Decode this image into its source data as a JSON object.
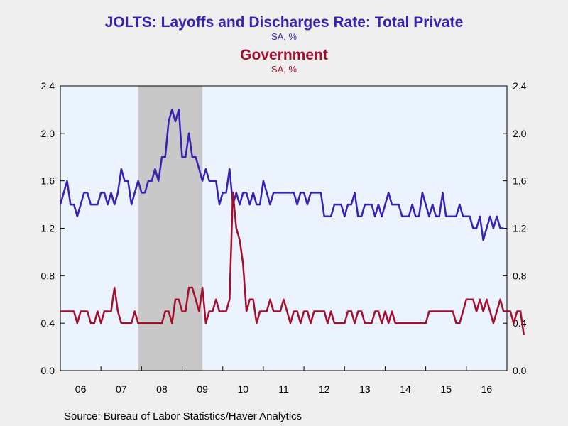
{
  "titles": {
    "series1_title": "JOLTS: Layoffs and Discharges Rate: Total Private",
    "series1_units": "SA, %",
    "series2_title": "Government",
    "series2_units": "SA, %"
  },
  "source": "Source:  Bureau of Labor Statistics/Haver Analytics",
  "colors": {
    "series1": "#3a1fb5",
    "series2": "#a50d2c",
    "plot_bg": "#ebf3ff",
    "recession": "#c8c8c8"
  },
  "chart_data": {
    "type": "line",
    "x_labels": [
      "06",
      "07",
      "08",
      "09",
      "10",
      "11",
      "12",
      "13",
      "14",
      "15",
      "16"
    ],
    "x_start": "2006-01",
    "x_end": "2016-12",
    "ylim": [
      0.0,
      2.4
    ],
    "y_ticks": [
      "0.0",
      "0.4",
      "0.8",
      "1.2",
      "1.6",
      "2.0",
      "2.4"
    ],
    "right_axis_ticks": [
      "0.0",
      "0.4",
      "0.8",
      "1.2",
      "1.6",
      "2.0",
      "2.4"
    ],
    "recession_shading": {
      "start": "2007-12",
      "end": "2009-06"
    },
    "grid": false,
    "legend": "none",
    "series": [
      {
        "name": "JOLTS: Layoffs and Discharges Rate: Total Private",
        "values": [
          1.4,
          1.5,
          1.6,
          1.4,
          1.4,
          1.3,
          1.4,
          1.5,
          1.5,
          1.4,
          1.4,
          1.4,
          1.5,
          1.5,
          1.4,
          1.5,
          1.4,
          1.5,
          1.7,
          1.6,
          1.6,
          1.4,
          1.5,
          1.6,
          1.5,
          1.5,
          1.6,
          1.6,
          1.7,
          1.6,
          1.8,
          1.8,
          2.1,
          2.2,
          2.1,
          2.2,
          1.8,
          1.8,
          2.0,
          1.8,
          1.8,
          1.7,
          1.6,
          1.7,
          1.6,
          1.6,
          1.6,
          1.4,
          1.5,
          1.5,
          1.7,
          1.4,
          1.5,
          1.4,
          1.5,
          1.5,
          1.4,
          1.5,
          1.4,
          1.4,
          1.6,
          1.5,
          1.4,
          1.5,
          1.5,
          1.5,
          1.5,
          1.5,
          1.5,
          1.5,
          1.4,
          1.5,
          1.5,
          1.4,
          1.5,
          1.5,
          1.5,
          1.5,
          1.3,
          1.3,
          1.3,
          1.4,
          1.4,
          1.4,
          1.3,
          1.4,
          1.4,
          1.5,
          1.3,
          1.3,
          1.4,
          1.4,
          1.4,
          1.3,
          1.4,
          1.3,
          1.4,
          1.5,
          1.4,
          1.4,
          1.4,
          1.3,
          1.3,
          1.3,
          1.4,
          1.3,
          1.3,
          1.5,
          1.4,
          1.3,
          1.4,
          1.3,
          1.3,
          1.5,
          1.3,
          1.3,
          1.3,
          1.3,
          1.4,
          1.3,
          1.3,
          1.3,
          1.2,
          1.2,
          1.3,
          1.1,
          1.2,
          1.3,
          1.2,
          1.3,
          1.2,
          1.2
        ]
      },
      {
        "name": "Government",
        "values": [
          0.5,
          0.5,
          0.5,
          0.5,
          0.5,
          0.4,
          0.5,
          0.5,
          0.5,
          0.4,
          0.4,
          0.5,
          0.4,
          0.5,
          0.5,
          0.5,
          0.7,
          0.5,
          0.4,
          0.4,
          0.4,
          0.4,
          0.5,
          0.4,
          0.4,
          0.4,
          0.4,
          0.4,
          0.4,
          0.4,
          0.4,
          0.5,
          0.5,
          0.4,
          0.6,
          0.6,
          0.5,
          0.5,
          0.7,
          0.7,
          0.6,
          0.5,
          0.7,
          0.4,
          0.5,
          0.5,
          0.6,
          0.5,
          0.5,
          0.5,
          0.6,
          1.5,
          1.2,
          1.1,
          0.9,
          0.5,
          0.6,
          0.6,
          0.4,
          0.5,
          0.5,
          0.5,
          0.6,
          0.5,
          0.5,
          0.5,
          0.6,
          0.5,
          0.4,
          0.5,
          0.5,
          0.4,
          0.5,
          0.5,
          0.4,
          0.5,
          0.5,
          0.5,
          0.5,
          0.4,
          0.5,
          0.4,
          0.4,
          0.4,
          0.4,
          0.5,
          0.5,
          0.4,
          0.5,
          0.5,
          0.4,
          0.4,
          0.4,
          0.5,
          0.5,
          0.4,
          0.5,
          0.4,
          0.5,
          0.4,
          0.4,
          0.4,
          0.4,
          0.4,
          0.4,
          0.4,
          0.4,
          0.4,
          0.4,
          0.5,
          0.5,
          0.5,
          0.5,
          0.5,
          0.5,
          0.5,
          0.5,
          0.4,
          0.4,
          0.5,
          0.6,
          0.6,
          0.6,
          0.5,
          0.6,
          0.5,
          0.6,
          0.5,
          0.4,
          0.5,
          0.6,
          0.5,
          0.5,
          0.5,
          0.4,
          0.5,
          0.5,
          0.3
        ]
      }
    ]
  }
}
